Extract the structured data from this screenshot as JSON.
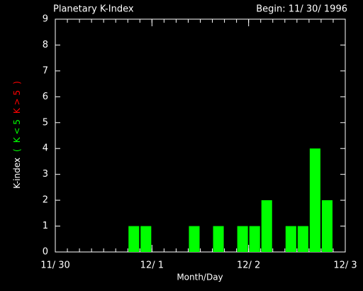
{
  "chart_data": {
    "type": "bar",
    "title": "Planetary K-Index",
    "subtitle": "Begin: 11/ 30/ 1996",
    "x_label": "Month/Day",
    "y_label": [
      {
        "text": "K-index",
        "color": "#ffffff"
      },
      {
        "text": "(",
        "color": "#00ff00"
      },
      {
        "text": "K < 5",
        "color": "#00ff00"
      },
      {
        "text": "K > 5",
        "color": "#ff0000"
      },
      {
        "text": ")",
        "color": "#ff0000"
      }
    ],
    "x": [
      0,
      3,
      6,
      9,
      12,
      15,
      18,
      21,
      24,
      27,
      30,
      33,
      36,
      39,
      42,
      45,
      48,
      51,
      54,
      57,
      60,
      63,
      66,
      69
    ],
    "bar_width": 3,
    "values": [
      0,
      0,
      0,
      0,
      0,
      0,
      1,
      1,
      0,
      0,
      0,
      1,
      0,
      1,
      0,
      1,
      1,
      2,
      0,
      1,
      1,
      4,
      2,
      0
    ],
    "color": "#00ff00",
    "threshold": 5,
    "threshold_color": "#ff0000",
    "xlim": [
      0,
      72
    ],
    "xticks": [
      {
        "value": 0,
        "label": "11/ 30"
      },
      {
        "value": 24,
        "label": "12/ 1"
      },
      {
        "value": 48,
        "label": "12/ 2"
      },
      {
        "value": 72,
        "label": "12/ 3"
      }
    ],
    "ylim": [
      0,
      9
    ],
    "yticks": [
      0,
      1,
      2,
      3,
      4,
      5,
      6,
      7,
      8,
      9
    ]
  }
}
